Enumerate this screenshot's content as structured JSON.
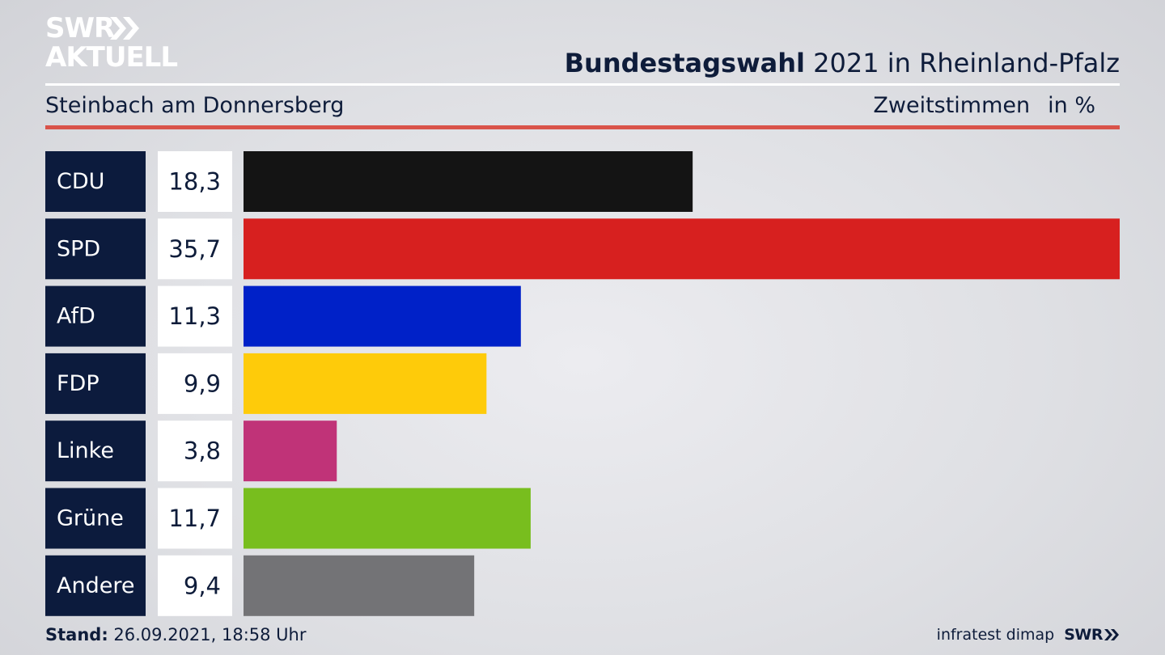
{
  "logo": {
    "line1": "SWR",
    "line2": "AKTUELL",
    "arrows_icon": "double-chevron-right-icon"
  },
  "header": {
    "title_bold": "Bundestagswahl",
    "title_rest": " 2021 in Rheinland-Pfalz",
    "subtitle": "Steinbach am Donnersberg",
    "measure": "Zweitstimmen",
    "unit": "in %"
  },
  "colors": {
    "label_box": "#0c1b3d",
    "value_box": "#ffffff",
    "accent_rule": "#d9534a"
  },
  "chart_data": {
    "type": "bar",
    "orientation": "horizontal",
    "categories": [
      "CDU",
      "SPD",
      "AfD",
      "FDP",
      "Linke",
      "Grüne",
      "Andere"
    ],
    "values": [
      18.3,
      35.7,
      11.3,
      9.9,
      3.8,
      11.7,
      9.4
    ],
    "value_labels": [
      "18,3",
      "35,7",
      "11,3",
      "9,9",
      "3,8",
      "11,7",
      "9,4"
    ],
    "colors": [
      "#141414",
      "#d7201f",
      "#0021c8",
      "#fecb0a",
      "#c03378",
      "#78be1e",
      "#737376"
    ],
    "xlim": [
      0,
      35.7
    ],
    "grid": false,
    "legend": "none"
  },
  "footer": {
    "stand_label": "Stand:",
    "stand_value": " 26.09.2021, 18:58 Uhr",
    "source": "infratest dimap",
    "brand": "SWR",
    "brand_icon": "double-chevron-right-icon"
  }
}
